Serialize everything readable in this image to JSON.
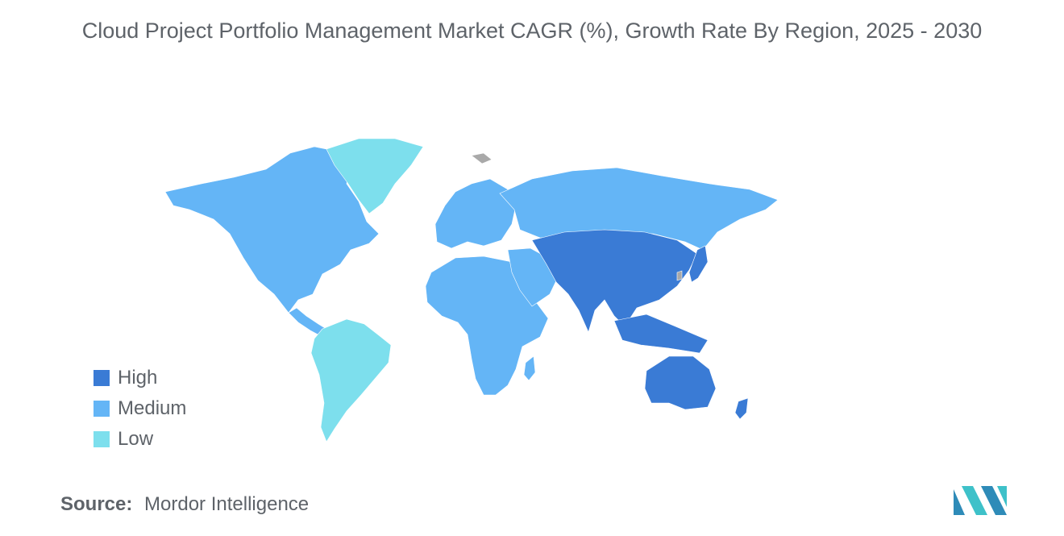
{
  "title": "Cloud Project Portfolio Management Market CAGR (%), Growth Rate By Region, 2025 - 2030",
  "colors": {
    "high": "#3a7bd5",
    "medium": "#64b5f6",
    "low": "#7ddfed",
    "no_data": "#a9a9a9"
  },
  "legend": [
    {
      "label": "High",
      "color": "#3a7bd5"
    },
    {
      "label": "Medium",
      "color": "#64b5f6"
    },
    {
      "label": "Low",
      "color": "#7ddfed"
    }
  ],
  "regions": {
    "north_america": "Medium",
    "south_america": "Low",
    "greenland": "Low",
    "europe": "Medium",
    "russia": "Medium",
    "africa": "Medium",
    "middle_east": "Medium",
    "asia": "High",
    "japan": "High",
    "southeast_asia": "High",
    "australia": "High",
    "new_zealand": "High"
  },
  "source": {
    "label": "Source:",
    "value": "Mordor Intelligence"
  },
  "logo": {
    "icon": "mordor-intelligence-logo"
  }
}
